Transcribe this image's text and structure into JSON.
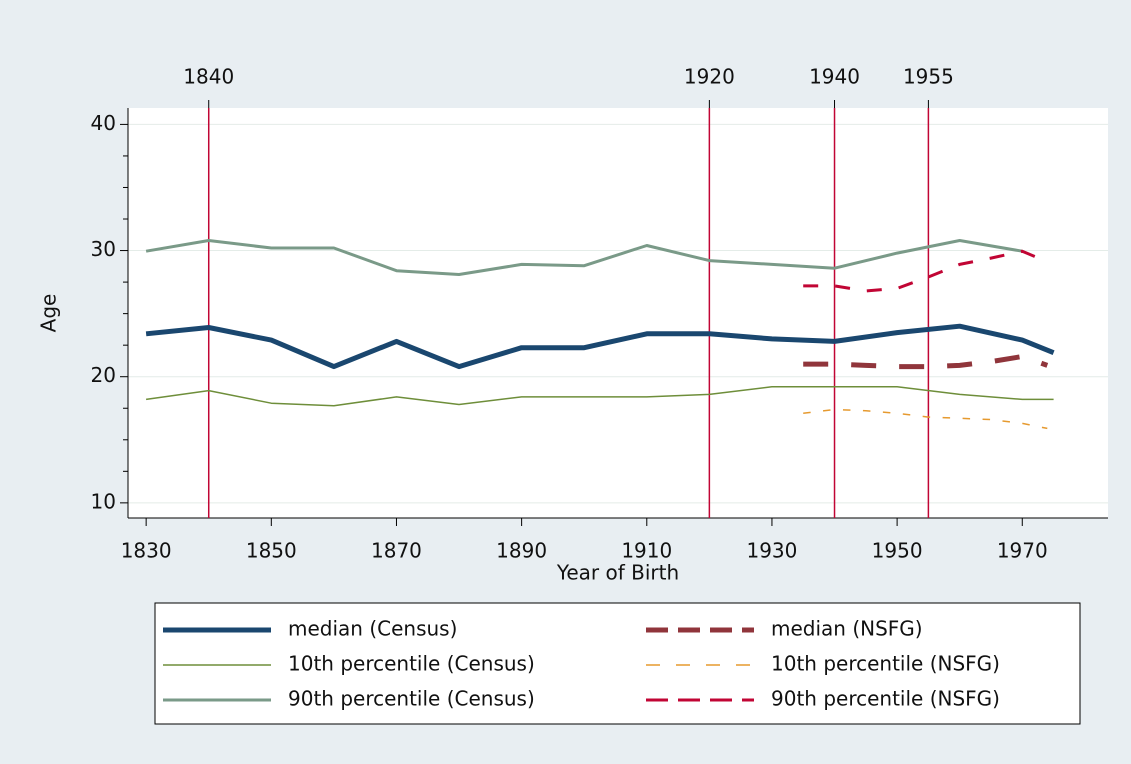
{
  "chart_data": {
    "type": "line",
    "xlabel": "Year of Birth",
    "ylabel": "Age",
    "xlim": [
      1827.1,
      1983.7
    ],
    "ylim": [
      8.8,
      41.3
    ],
    "xticks": [
      1830,
      1850,
      1870,
      1890,
      1910,
      1930,
      1950,
      1970
    ],
    "yticks": [
      10,
      20,
      30,
      40
    ],
    "yminor_ticks": [
      12.5,
      15,
      17.5,
      22.5,
      25,
      27.5,
      32.5,
      35,
      37.5
    ],
    "grid": true,
    "reference_lines": {
      "color": "#c10534",
      "x": [
        1840,
        1920,
        1940,
        1955
      ]
    },
    "series": [
      {
        "name": "median (Census)",
        "color": "#1a476f",
        "style": "solid",
        "width": 5,
        "x": [
          1830,
          1840,
          1850,
          1860,
          1870,
          1880,
          1890,
          1900,
          1910,
          1920,
          1930,
          1940,
          1950,
          1960,
          1970,
          1975
        ],
        "values": [
          23.4,
          23.9,
          22.9,
          20.8,
          22.8,
          20.8,
          22.3,
          22.3,
          23.4,
          23.4,
          23.0,
          22.8,
          23.5,
          24.0,
          22.9,
          21.9
        ]
      },
      {
        "name": "10th percentile (Census)",
        "color": "#6e8e3a",
        "style": "solid",
        "width": 1.5,
        "x": [
          1830,
          1840,
          1850,
          1860,
          1870,
          1880,
          1890,
          1900,
          1910,
          1920,
          1930,
          1940,
          1950,
          1960,
          1970,
          1975
        ],
        "values": [
          18.2,
          18.9,
          17.9,
          17.7,
          18.4,
          17.8,
          18.4,
          18.4,
          18.4,
          18.6,
          19.2,
          19.2,
          19.2,
          18.6,
          18.2,
          18.2
        ]
      },
      {
        "name": "90th percentile (Census)",
        "color": "#7a9a88",
        "style": "solid",
        "width": 3,
        "x": [
          1830,
          1840,
          1850,
          1860,
          1870,
          1880,
          1890,
          1900,
          1910,
          1920,
          1930,
          1940,
          1950,
          1960,
          1970
        ],
        "values": [
          29.95,
          30.8,
          30.2,
          30.2,
          28.4,
          28.1,
          28.9,
          28.8,
          30.4,
          29.2,
          28.9,
          28.6,
          29.8,
          30.8,
          29.95
        ]
      },
      {
        "name": "median (NSFG)",
        "color": "#90353b",
        "style": "dashed",
        "width": 5,
        "x": [
          1935,
          1940,
          1945,
          1950,
          1955,
          1960,
          1965,
          1970,
          1974
        ],
        "values": [
          21.0,
          21.0,
          20.9,
          20.8,
          20.8,
          20.9,
          21.2,
          21.6,
          20.9
        ]
      },
      {
        "name": "10th percentile (NSFG)",
        "color": "#e69a2f",
        "style": "dashed",
        "width": 1.5,
        "x": [
          1935,
          1940,
          1945,
          1950,
          1955,
          1960,
          1965,
          1970,
          1974
        ],
        "values": [
          17.1,
          17.4,
          17.3,
          17.1,
          16.8,
          16.7,
          16.6,
          16.3,
          15.9
        ]
      },
      {
        "name": "90th percentile (NSFG)",
        "color": "#c10534",
        "style": "dashed",
        "width": 3,
        "x": [
          1935,
          1940,
          1945,
          1950,
          1955,
          1960,
          1965,
          1970,
          1974
        ],
        "values": [
          27.2,
          27.2,
          26.8,
          27.0,
          27.9,
          28.9,
          29.4,
          29.95,
          29.1
        ]
      }
    ]
  }
}
